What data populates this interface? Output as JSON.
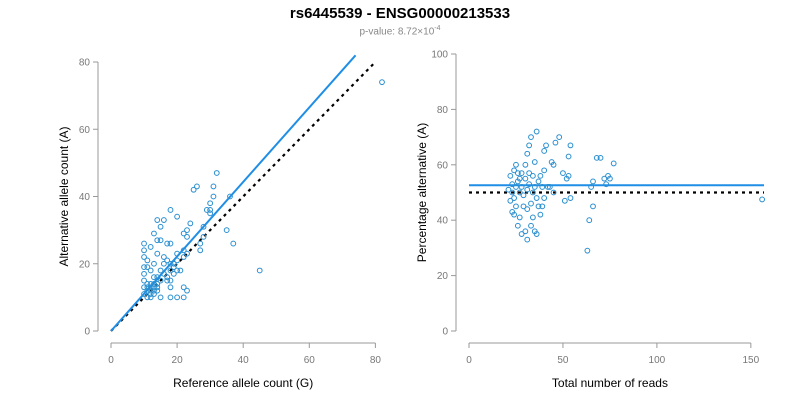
{
  "page": {
    "title": "rs6445539 - ENSG00000213533",
    "pvalue_label": "p-value: 8.72×10",
    "pvalue_exponent": "-4"
  },
  "chart_data": [
    {
      "type": "scatter",
      "title": "",
      "xlabel": "Reference allele count (G)",
      "ylabel": "Alternative allele count (A)",
      "xlim": [
        0,
        82
      ],
      "ylim": [
        0,
        80
      ],
      "xticks": [
        0,
        20,
        40,
        60,
        80
      ],
      "yticks": [
        0,
        20,
        40,
        60,
        80
      ],
      "fit_line": [
        [
          0,
          0
        ],
        [
          74,
          82
        ]
      ],
      "reference_line": [
        [
          0,
          0
        ],
        [
          80,
          80
        ]
      ],
      "colors": {
        "points": "#2a8fd0",
        "fit": "#1f8ee6",
        "reference": "#000000"
      },
      "points": [
        [
          82,
          74
        ],
        [
          45,
          18
        ],
        [
          37,
          26
        ],
        [
          36,
          40
        ],
        [
          35,
          30
        ],
        [
          32,
          47
        ],
        [
          31,
          43
        ],
        [
          31,
          40
        ],
        [
          30,
          38
        ],
        [
          30,
          36
        ],
        [
          30,
          35
        ],
        [
          29,
          36
        ],
        [
          28,
          28
        ],
        [
          28,
          31
        ],
        [
          26,
          43
        ],
        [
          25,
          42
        ],
        [
          27,
          24
        ],
        [
          27,
          26
        ],
        [
          24,
          32
        ],
        [
          23,
          30
        ],
        [
          22,
          29
        ],
        [
          23,
          28
        ],
        [
          22,
          24
        ],
        [
          23,
          23
        ],
        [
          22,
          22
        ],
        [
          21,
          18
        ],
        [
          23,
          12
        ],
        [
          22,
          10
        ],
        [
          20,
          10
        ],
        [
          18,
          10
        ],
        [
          22,
          13
        ],
        [
          20,
          23
        ],
        [
          20,
          21
        ],
        [
          19,
          20
        ],
        [
          18,
          20
        ],
        [
          18,
          18
        ],
        [
          19,
          19
        ],
        [
          20,
          34
        ],
        [
          18,
          36
        ],
        [
          16,
          33
        ],
        [
          15,
          31
        ],
        [
          14,
          33
        ],
        [
          15,
          27
        ],
        [
          14,
          27
        ],
        [
          17,
          26
        ],
        [
          18,
          26
        ],
        [
          20,
          18
        ],
        [
          19,
          17
        ],
        [
          18,
          15
        ],
        [
          18,
          13
        ],
        [
          16,
          22
        ],
        [
          17,
          21
        ],
        [
          15,
          18
        ],
        [
          16,
          17
        ],
        [
          16,
          20
        ],
        [
          17,
          16
        ],
        [
          17,
          15
        ],
        [
          14,
          23
        ],
        [
          13,
          20
        ],
        [
          12,
          18
        ],
        [
          13,
          16
        ],
        [
          14,
          14
        ],
        [
          14,
          16
        ],
        [
          15,
          15
        ],
        [
          13,
          13
        ],
        [
          12,
          12
        ],
        [
          13,
          12
        ],
        [
          14,
          12
        ],
        [
          12,
          11
        ],
        [
          11,
          10
        ],
        [
          12,
          14
        ],
        [
          15,
          10
        ],
        [
          10,
          11
        ],
        [
          10,
          13
        ],
        [
          10,
          15
        ],
        [
          10,
          17
        ],
        [
          10,
          19
        ],
        [
          10,
          22
        ],
        [
          10,
          24
        ],
        [
          10,
          26
        ],
        [
          11,
          21
        ],
        [
          12,
          25
        ],
        [
          13,
          29
        ],
        [
          11,
          19
        ],
        [
          11,
          12
        ],
        [
          11,
          14
        ],
        [
          12,
          13
        ],
        [
          13,
          11
        ],
        [
          13,
          14
        ],
        [
          14,
          13
        ],
        [
          11,
          13
        ],
        [
          12,
          10
        ]
      ]
    },
    {
      "type": "scatter",
      "title": "",
      "xlabel": "Total number of reads",
      "ylabel": "Percentage alternative (A)",
      "xlim": [
        0,
        157
      ],
      "ylim": [
        0,
        100
      ],
      "xticks": [
        0,
        50,
        100,
        150
      ],
      "yticks": [
        0,
        20,
        40,
        60,
        80,
        100
      ],
      "fit_line": [
        [
          0,
          52.6
        ],
        [
          157,
          52.6
        ]
      ],
      "reference_line": [
        [
          0,
          50
        ],
        [
          157,
          50
        ]
      ],
      "colors": {
        "points": "#2a8fd0",
        "fit": "#1f8ee6",
        "reference": "#000000"
      },
      "points": [
        [
          156,
          47.5
        ],
        [
          77,
          60.5
        ],
        [
          75,
          55
        ],
        [
          74,
          56
        ],
        [
          73,
          53
        ],
        [
          72,
          55
        ],
        [
          70,
          62.5
        ],
        [
          68,
          62.5
        ],
        [
          66,
          54
        ],
        [
          65,
          52
        ],
        [
          64,
          40
        ],
        [
          66,
          45
        ],
        [
          63,
          29
        ],
        [
          54,
          67
        ],
        [
          53,
          63
        ],
        [
          53,
          56
        ],
        [
          54,
          48
        ],
        [
          52,
          55
        ],
        [
          51,
          47
        ],
        [
          50,
          57
        ],
        [
          48,
          70
        ],
        [
          46,
          68
        ],
        [
          45,
          60
        ],
        [
          44,
          61
        ],
        [
          43,
          52
        ],
        [
          45,
          50
        ],
        [
          40,
          65
        ],
        [
          41,
          67
        ],
        [
          39,
          52
        ],
        [
          40,
          48
        ],
        [
          38,
          56
        ],
        [
          36,
          72
        ],
        [
          35,
          61
        ],
        [
          33,
          70
        ],
        [
          32,
          67
        ],
        [
          31,
          64
        ],
        [
          30,
          60
        ],
        [
          34,
          50
        ],
        [
          33,
          46
        ],
        [
          34,
          41
        ],
        [
          35,
          36
        ],
        [
          36,
          35
        ],
        [
          33,
          38
        ],
        [
          30,
          36
        ],
        [
          31,
          33
        ],
        [
          28,
          35
        ],
        [
          29,
          45
        ],
        [
          27,
          41
        ],
        [
          26,
          54
        ],
        [
          27,
          50
        ],
        [
          28,
          52
        ],
        [
          30,
          55
        ],
        [
          31,
          51
        ],
        [
          29,
          49
        ],
        [
          25,
          52
        ],
        [
          24,
          48
        ],
        [
          25,
          45
        ],
        [
          24,
          42
        ],
        [
          23,
          50
        ],
        [
          22,
          56
        ],
        [
          23,
          53
        ],
        [
          21,
          51
        ],
        [
          22,
          47
        ],
        [
          24,
          58
        ],
        [
          25,
          60
        ],
        [
          26,
          57
        ],
        [
          27,
          55
        ],
        [
          28,
          57
        ],
        [
          32,
          57
        ],
        [
          35,
          52
        ],
        [
          37,
          45
        ],
        [
          38,
          42
        ],
        [
          42,
          52
        ],
        [
          40,
          58
        ],
        [
          39,
          45
        ],
        [
          37,
          54
        ],
        [
          36,
          48
        ],
        [
          34,
          56
        ],
        [
          32,
          53
        ],
        [
          31,
          44
        ],
        [
          26,
          38
        ],
        [
          23,
          43
        ]
      ]
    }
  ]
}
